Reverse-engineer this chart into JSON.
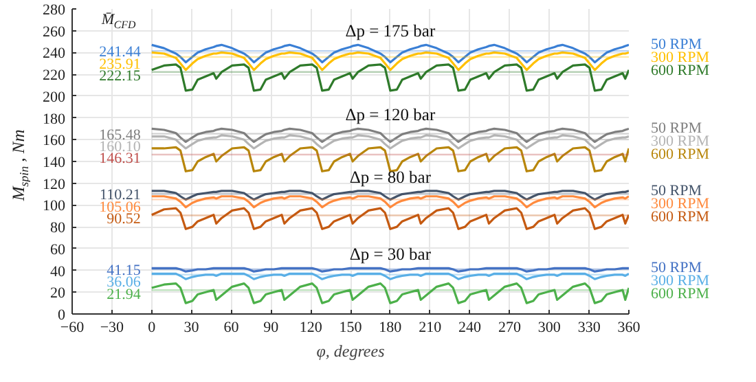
{
  "chart_data": {
    "type": "line",
    "xlabel": "φ, degrees",
    "ylabel": "M$_{spin}$, Nm",
    "xlim": [
      -60,
      360
    ],
    "xticks": [
      -60,
      -30,
      0,
      30,
      60,
      90,
      120,
      150,
      180,
      210,
      240,
      270,
      300,
      330,
      360
    ],
    "ylim": [
      0,
      280
    ],
    "yticks": [
      0,
      20,
      40,
      60,
      80,
      100,
      120,
      140,
      160,
      180,
      200,
      220,
      240,
      260,
      280
    ],
    "grid": true,
    "legend": false,
    "marker": "none",
    "line_style": "solid",
    "x": [
      0,
      9.3,
      18.3,
      21.7,
      25.7,
      30.7,
      34.7,
      40.7,
      46.7,
      48.7,
      52.7,
      60.7,
      69.7,
      73.1,
      77.1,
      82.1,
      86.1,
      92.1,
      98.1,
      100.1,
      104.1,
      112.1,
      121.1,
      124.5,
      128.6,
      133.6,
      137.6,
      143.6,
      149.6,
      151.6,
      155.6,
      163.6,
      172.6,
      176.0,
      180.0,
      185.0,
      189.0,
      195.0,
      201.0,
      203.0,
      207.0,
      215.0,
      224.0,
      227.4,
      231.4,
      236.4,
      240.4,
      246.4,
      252.4,
      254.4,
      258.4,
      266.4,
      275.4,
      278.8,
      282.9,
      287.9,
      291.9,
      297.9,
      303.9,
      305.9,
      309.9,
      317.9,
      326.9,
      330.3,
      334.3,
      339.3,
      343.3,
      349.3,
      355.3,
      357.3,
      360
    ],
    "series": [
      {
        "name": "50 RPM",
        "color": "#3a7fd5",
        "values": [
          247,
          244,
          239,
          236,
          231,
          236,
          240,
          243,
          245,
          246,
          247,
          244,
          239,
          236,
          231,
          236,
          240,
          243,
          245,
          246,
          247,
          244,
          239,
          236,
          231,
          236,
          240,
          243,
          245,
          246,
          247,
          244,
          239,
          236,
          231,
          236,
          240,
          243,
          245,
          246,
          247,
          244,
          239,
          236,
          231,
          236,
          240,
          243,
          245,
          246,
          247,
          244,
          239,
          236,
          231,
          236,
          240,
          243,
          245,
          246,
          247,
          244,
          239,
          236,
          231,
          236,
          240,
          243,
          245,
          246,
          247
        ]
      },
      {
        "name": "300 RPM",
        "color": "#ffc000",
        "values": [
          240,
          239,
          235,
          230,
          224,
          230,
          234,
          237,
          239,
          239,
          240,
          239,
          235,
          230,
          224,
          230,
          234,
          237,
          239,
          239,
          240,
          239,
          235,
          230,
          224,
          230,
          234,
          237,
          239,
          239,
          240,
          239,
          235,
          230,
          224,
          230,
          234,
          237,
          239,
          239,
          240,
          239,
          235,
          230,
          224,
          230,
          234,
          237,
          239,
          239,
          240,
          239,
          235,
          230,
          224,
          230,
          234,
          237,
          239,
          239,
          240,
          239,
          235,
          230,
          224,
          230,
          234,
          237,
          239,
          239,
          240
        ]
      },
      {
        "name": "600 RPM",
        "color": "#2e7a2a",
        "values": [
          224,
          228,
          229,
          226,
          205,
          206,
          215,
          218,
          221,
          216,
          222,
          228,
          229,
          226,
          205,
          206,
          215,
          218,
          221,
          216,
          222,
          228,
          229,
          226,
          205,
          206,
          215,
          218,
          221,
          216,
          222,
          228,
          229,
          226,
          205,
          206,
          215,
          218,
          221,
          216,
          222,
          228,
          229,
          226,
          205,
          206,
          215,
          218,
          221,
          216,
          222,
          228,
          229,
          226,
          205,
          206,
          215,
          218,
          221,
          216,
          222,
          228,
          229,
          226,
          205,
          206,
          215,
          218,
          221,
          216,
          224
        ]
      },
      {
        "name": "50 RPM",
        "color": "#7f7f7f",
        "values": [
          170,
          169,
          166,
          162,
          158,
          162,
          165,
          167,
          168,
          169,
          170,
          169,
          166,
          162,
          158,
          162,
          165,
          167,
          168,
          169,
          170,
          169,
          166,
          162,
          158,
          162,
          165,
          167,
          168,
          169,
          170,
          169,
          166,
          162,
          158,
          162,
          165,
          167,
          168,
          169,
          170,
          169,
          166,
          162,
          158,
          162,
          165,
          167,
          168,
          169,
          170,
          169,
          166,
          162,
          158,
          162,
          165,
          167,
          168,
          169,
          170,
          169,
          166,
          162,
          158,
          162,
          165,
          167,
          168,
          169,
          170
        ]
      },
      {
        "name": "300 RPM",
        "color": "#b4b4b4",
        "values": [
          163,
          163,
          160,
          156,
          152,
          156,
          159,
          161,
          162,
          162,
          164,
          163,
          160,
          156,
          152,
          156,
          159,
          161,
          162,
          162,
          164,
          163,
          160,
          156,
          152,
          156,
          159,
          161,
          162,
          162,
          164,
          163,
          160,
          156,
          152,
          156,
          159,
          161,
          162,
          162,
          164,
          163,
          160,
          156,
          152,
          156,
          159,
          161,
          162,
          162,
          164,
          163,
          160,
          156,
          152,
          156,
          159,
          161,
          162,
          162,
          164,
          163,
          160,
          156,
          152,
          156,
          159,
          161,
          162,
          162,
          163
        ]
      },
      {
        "name": "600 RPM",
        "color": "#b8860b",
        "values": [
          152,
          152,
          153,
          150,
          131,
          132,
          140,
          144,
          147,
          140,
          145,
          152,
          153,
          150,
          131,
          132,
          140,
          144,
          147,
          140,
          145,
          152,
          153,
          150,
          131,
          132,
          140,
          144,
          147,
          140,
          145,
          152,
          153,
          150,
          131,
          132,
          140,
          144,
          147,
          140,
          145,
          152,
          153,
          150,
          131,
          132,
          140,
          144,
          147,
          140,
          145,
          152,
          153,
          150,
          131,
          132,
          140,
          144,
          147,
          140,
          145,
          152,
          153,
          150,
          131,
          132,
          140,
          144,
          147,
          140,
          152
        ]
      },
      {
        "name": "50 RPM",
        "color": "#44546a",
        "values": [
          113,
          113,
          111,
          108,
          105,
          108,
          110,
          111,
          112,
          112,
          113,
          113,
          111,
          108,
          105,
          108,
          110,
          111,
          112,
          112,
          113,
          113,
          111,
          108,
          105,
          108,
          110,
          111,
          112,
          112,
          113,
          113,
          111,
          108,
          105,
          108,
          110,
          111,
          112,
          112,
          113,
          113,
          111,
          108,
          105,
          108,
          110,
          111,
          112,
          112,
          113,
          113,
          111,
          108,
          105,
          108,
          110,
          111,
          112,
          112,
          113,
          113,
          111,
          108,
          105,
          108,
          110,
          111,
          112,
          112,
          113
        ]
      },
      {
        "name": "300 RPM",
        "color": "#ff8a3d",
        "values": [
          108,
          108,
          106,
          103,
          98,
          102,
          104,
          106,
          107,
          106,
          108,
          108,
          106,
          103,
          98,
          102,
          104,
          106,
          107,
          106,
          108,
          108,
          106,
          103,
          98,
          102,
          104,
          106,
          107,
          106,
          108,
          108,
          106,
          103,
          98,
          102,
          104,
          106,
          107,
          106,
          108,
          108,
          106,
          103,
          98,
          102,
          104,
          106,
          107,
          106,
          108,
          108,
          106,
          103,
          98,
          102,
          104,
          106,
          107,
          106,
          108,
          108,
          106,
          103,
          98,
          102,
          104,
          106,
          107,
          106,
          108
        ]
      },
      {
        "name": "600 RPM",
        "color": "#c55a11",
        "values": [
          91,
          96,
          97,
          93,
          78,
          80,
          85,
          88,
          91,
          83,
          88,
          95,
          97,
          93,
          78,
          80,
          85,
          88,
          91,
          83,
          88,
          95,
          97,
          93,
          78,
          80,
          85,
          88,
          91,
          83,
          88,
          95,
          97,
          93,
          78,
          80,
          85,
          88,
          91,
          83,
          88,
          95,
          97,
          93,
          78,
          80,
          85,
          88,
          91,
          83,
          88,
          95,
          97,
          93,
          78,
          80,
          85,
          88,
          91,
          83,
          88,
          95,
          97,
          93,
          78,
          80,
          85,
          88,
          91,
          83,
          91
        ]
      },
      {
        "name": "50 RPM",
        "color": "#4472c4",
        "values": [
          42,
          42,
          42,
          41,
          39,
          40,
          41,
          41,
          42,
          42,
          42,
          42,
          42,
          41,
          39,
          40,
          41,
          41,
          42,
          42,
          42,
          42,
          42,
          41,
          39,
          40,
          41,
          41,
          42,
          42,
          42,
          42,
          42,
          41,
          39,
          40,
          41,
          41,
          42,
          42,
          42,
          42,
          42,
          41,
          39,
          40,
          41,
          41,
          42,
          42,
          42,
          42,
          42,
          41,
          39,
          40,
          41,
          41,
          42,
          42,
          42,
          42,
          42,
          41,
          39,
          40,
          41,
          41,
          42,
          42,
          42
        ]
      },
      {
        "name": "300 RPM",
        "color": "#5aafe6",
        "values": [
          37,
          37,
          37,
          35,
          32,
          34,
          35,
          36,
          36,
          35,
          37,
          37,
          37,
          35,
          32,
          34,
          35,
          36,
          36,
          35,
          37,
          37,
          37,
          35,
          32,
          34,
          35,
          36,
          36,
          35,
          37,
          37,
          37,
          35,
          32,
          34,
          35,
          36,
          36,
          35,
          37,
          37,
          37,
          35,
          32,
          34,
          35,
          36,
          36,
          35,
          37,
          37,
          37,
          35,
          32,
          34,
          35,
          36,
          36,
          35,
          37,
          37,
          37,
          35,
          32,
          34,
          35,
          36,
          36,
          35,
          37
        ]
      },
      {
        "name": "600 RPM",
        "color": "#4cb04a",
        "values": [
          24,
          27,
          28,
          24,
          10,
          12,
          18,
          20,
          22,
          13,
          17,
          25,
          28,
          24,
          10,
          12,
          18,
          20,
          22,
          13,
          17,
          25,
          28,
          24,
          10,
          12,
          18,
          20,
          22,
          13,
          17,
          25,
          28,
          24,
          10,
          12,
          18,
          20,
          22,
          13,
          17,
          25,
          28,
          24,
          10,
          12,
          18,
          20,
          22,
          13,
          17,
          25,
          28,
          24,
          10,
          12,
          18,
          20,
          22,
          13,
          17,
          25,
          28,
          24,
          10,
          12,
          18,
          20,
          22,
          13,
          24
        ]
      }
    ],
    "ref_lines": [
      {
        "axis": "y",
        "value": 241.44,
        "label": "241.44",
        "color": "#3a7fd5"
      },
      {
        "axis": "y",
        "value": 235.91,
        "label": "235.91",
        "color": "#ffc000"
      },
      {
        "axis": "y",
        "value": 222.15,
        "label": "222.15",
        "color": "#2e7a2a"
      },
      {
        "axis": "y",
        "value": 165.48,
        "label": "165.48",
        "color": "#7f7f7f"
      },
      {
        "axis": "y",
        "value": 160.1,
        "label": "160.10",
        "color": "#b4b4b4"
      },
      {
        "axis": "y",
        "value": 146.31,
        "label": "146.31",
        "color": "#c0504d"
      },
      {
        "axis": "y",
        "value": 110.21,
        "label": "110.21",
        "color": "#44546a"
      },
      {
        "axis": "y",
        "value": 105.06,
        "label": "105.06",
        "color": "#ff8a3d"
      },
      {
        "axis": "y",
        "value": 90.52,
        "label": "90.52",
        "color": "#c55a11"
      },
      {
        "axis": "y",
        "value": 41.15,
        "label": "41.15",
        "color": "#4472c4"
      },
      {
        "axis": "y",
        "value": 36.06,
        "label": "36.06",
        "color": "#5aafe6"
      },
      {
        "axis": "y",
        "value": 21.94,
        "label": "21.94",
        "color": "#4cb04a"
      }
    ],
    "annotations": [
      "M̄$_{CFD}$",
      "Δp = 175 bar",
      "Δp = 120 bar",
      "Δp = 80 bar",
      "Δp = 30 bar"
    ]
  }
}
